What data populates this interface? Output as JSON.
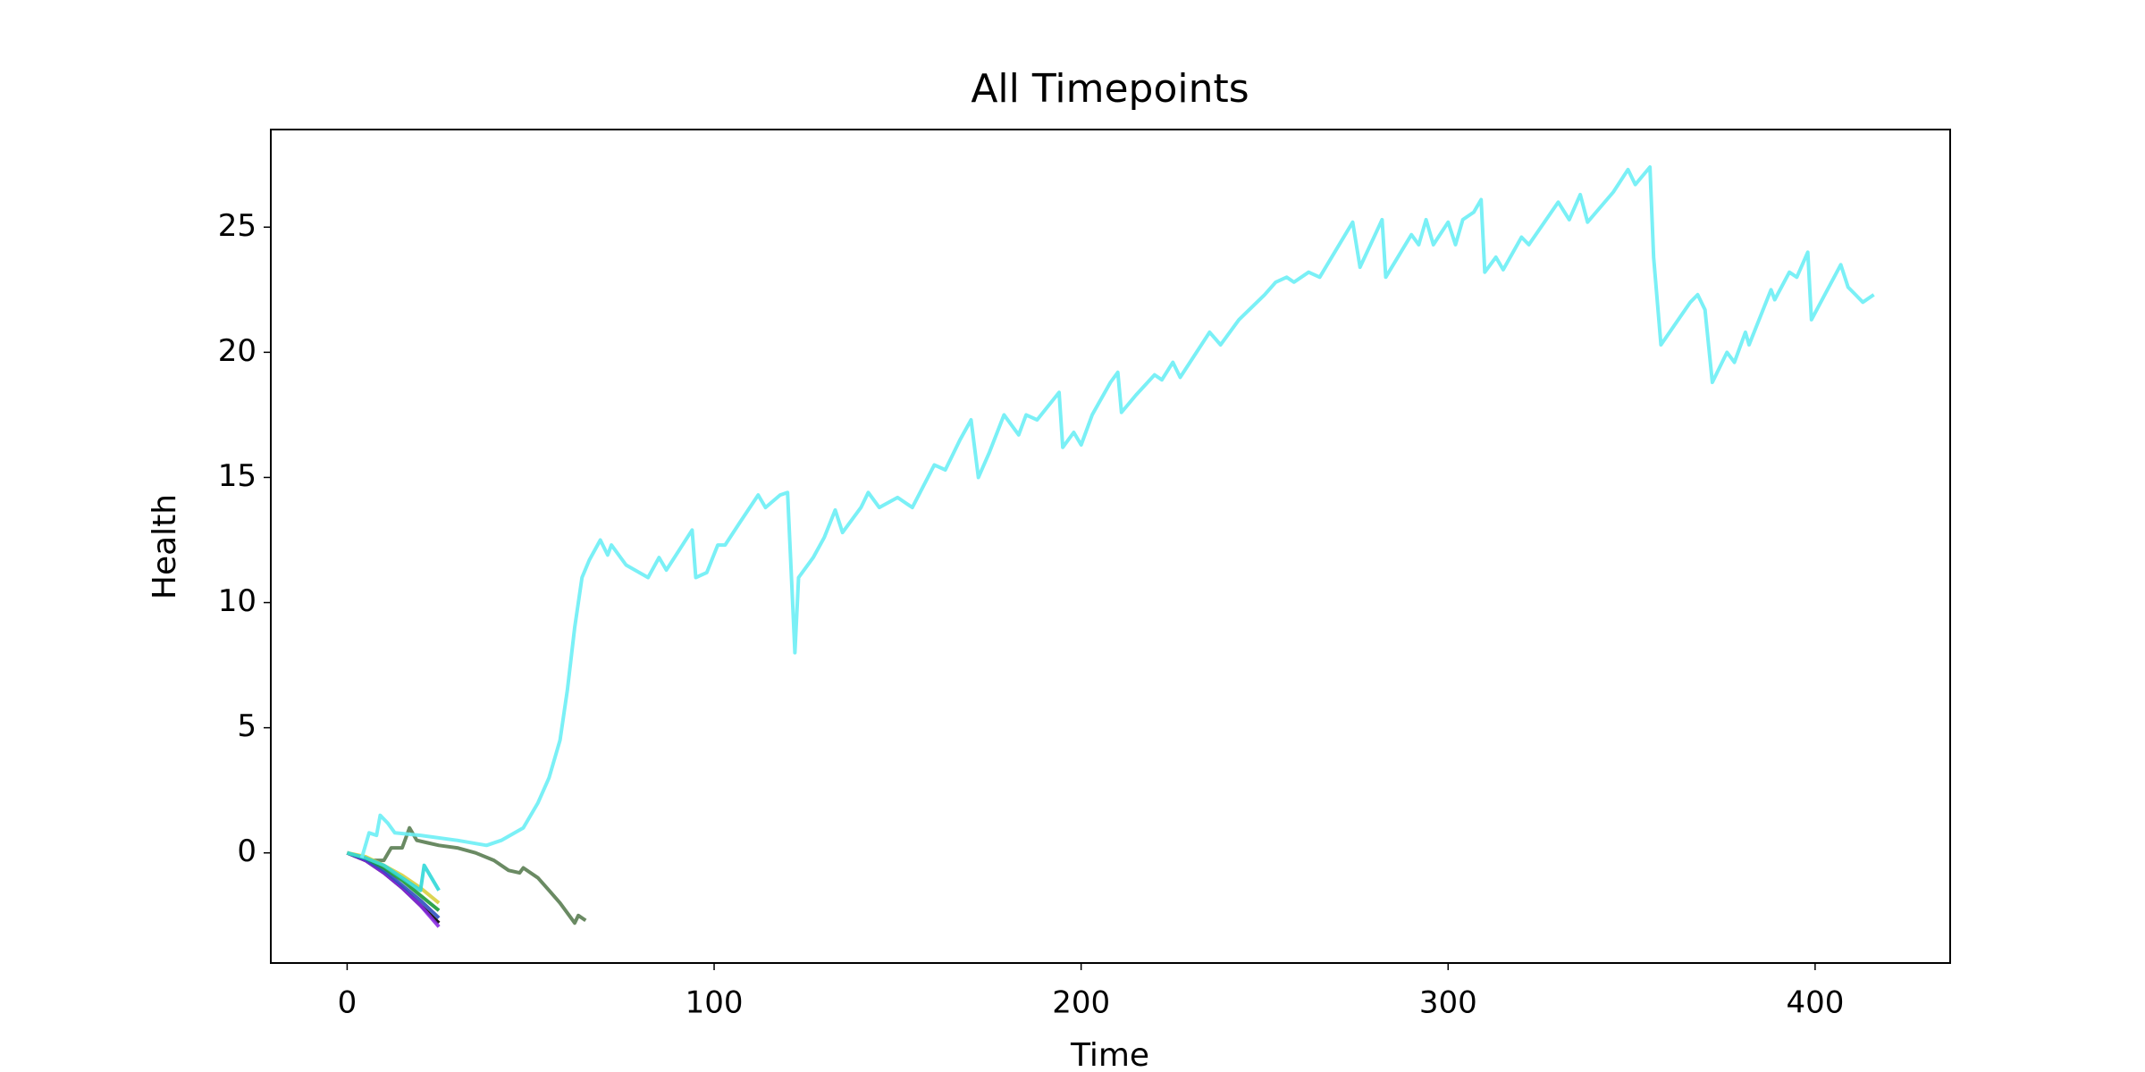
{
  "chart_data": {
    "type": "line",
    "title": "All Timepoints",
    "xlabel": "Time",
    "ylabel": "Health",
    "xlim": [
      -20.8,
      436.8
    ],
    "xticks": [
      0,
      100,
      200,
      300,
      400
    ],
    "ylim": [
      -4.4,
      28.9
    ],
    "yticks": [
      0,
      5,
      10,
      15,
      20,
      25
    ],
    "series": [
      {
        "color": "#5a7d52",
        "x": [
          0,
          5,
          10,
          12,
          15,
          17,
          19,
          22,
          25,
          30,
          35,
          40,
          44,
          47,
          48,
          52,
          55,
          58,
          61,
          62,
          63,
          65
        ],
        "values": [
          0,
          -0.3,
          -0.3,
          0.2,
          0.2,
          1.0,
          0.5,
          0.4,
          0.3,
          0.2,
          0,
          -0.3,
          -0.7,
          -0.8,
          -0.6,
          -1.0,
          -1.5,
          -2.0,
          -2.6,
          -2.8,
          -2.5,
          -2.7
        ]
      },
      {
        "color": "#000000",
        "x": [
          0,
          5,
          10,
          15,
          20,
          25
        ],
        "values": [
          0,
          -0.3,
          -0.8,
          -1.4,
          -2.1,
          -2.8
        ]
      },
      {
        "color": "#8a2be2",
        "x": [
          0,
          5,
          10,
          15,
          20,
          25
        ],
        "values": [
          0,
          -0.3,
          -0.8,
          -1.4,
          -2.1,
          -2.95
        ]
      },
      {
        "color": "#3050c0",
        "x": [
          0,
          5,
          10,
          15,
          20,
          25
        ],
        "values": [
          0,
          -0.25,
          -0.7,
          -1.3,
          -1.9,
          -2.6
        ]
      },
      {
        "color": "#1a9a3a",
        "x": [
          0,
          5,
          10,
          15,
          20,
          25
        ],
        "values": [
          0,
          -0.2,
          -0.6,
          -1.1,
          -1.7,
          -2.3
        ]
      },
      {
        "color": "#d8d040",
        "x": [
          0,
          5,
          10,
          15,
          20,
          25
        ],
        "values": [
          0,
          -0.15,
          -0.5,
          -0.9,
          -1.4,
          -2.0
        ]
      },
      {
        "color": "#30d8d8",
        "x": [
          0,
          5,
          10,
          15,
          20,
          21,
          25
        ],
        "values": [
          0,
          -0.2,
          -0.5,
          -1.0,
          -1.5,
          -0.5,
          -1.5
        ]
      },
      {
        "color": "#6ceef5",
        "x": [
          4,
          6,
          8,
          9,
          11,
          13,
          20,
          30,
          38,
          42,
          48,
          52,
          55,
          58,
          60,
          62,
          64,
          66,
          69,
          71,
          72,
          76,
          82,
          85,
          87,
          94,
          95,
          98,
          101,
          103,
          107,
          112,
          114,
          118,
          120,
          122,
          123,
          127,
          130,
          133,
          135,
          140,
          142,
          145,
          150,
          154,
          160,
          163,
          167,
          170,
          172,
          175,
          179,
          183,
          185,
          188,
          194,
          195,
          198,
          200,
          203,
          208,
          210,
          211,
          215,
          220,
          222,
          225,
          227,
          235,
          238,
          243,
          250,
          253,
          256,
          258,
          262,
          265,
          274,
          276,
          282,
          283,
          290,
          292,
          294,
          296,
          300,
          302,
          304,
          307,
          309,
          310,
          313,
          315,
          320,
          322,
          330,
          333,
          336,
          338,
          345,
          349,
          351,
          355,
          356,
          358,
          366,
          368,
          370,
          372,
          376,
          378,
          381,
          382,
          388,
          389,
          393,
          395,
          398,
          399,
          407,
          409,
          411,
          413,
          416
        ],
        "values": [
          -0.2,
          0.8,
          0.7,
          1.5,
          1.2,
          0.8,
          0.7,
          0.5,
          0.3,
          0.5,
          1.0,
          2.0,
          3,
          4.5,
          6.5,
          9,
          11,
          11.7,
          12.5,
          11.9,
          12.3,
          11.5,
          11,
          11.8,
          11.3,
          12.9,
          11,
          11.2,
          12.3,
          12.3,
          13.2,
          14.3,
          13.8,
          14.3,
          14.4,
          8,
          11,
          11.8,
          12.6,
          13.7,
          12.8,
          13.8,
          14.4,
          13.8,
          14.2,
          13.8,
          15.5,
          15.3,
          16.5,
          17.3,
          15,
          16,
          17.5,
          16.7,
          17.5,
          17.3,
          18.4,
          16.2,
          16.8,
          16.3,
          17.5,
          18.8,
          19.2,
          17.6,
          18.3,
          19.1,
          18.9,
          19.6,
          19,
          20.8,
          20.3,
          21.3,
          22.3,
          22.8,
          23,
          22.8,
          23.2,
          23,
          25.2,
          23.4,
          25.3,
          23.0,
          24.7,
          24.3,
          25.3,
          24.3,
          25.2,
          24.3,
          25.3,
          25.6,
          26.1,
          23.2,
          23.8,
          23.3,
          24.6,
          24.3,
          26,
          25.3,
          26.3,
          25.2,
          26.4,
          27.3,
          26.7,
          27.4,
          23.8,
          20.3,
          22,
          22.3,
          21.7,
          18.8,
          20,
          19.6,
          20.8,
          20.3,
          22.5,
          22.1,
          23.2,
          23.0,
          24,
          21.3,
          23.5,
          22.6,
          22.3,
          22,
          22.3
        ]
      }
    ]
  }
}
